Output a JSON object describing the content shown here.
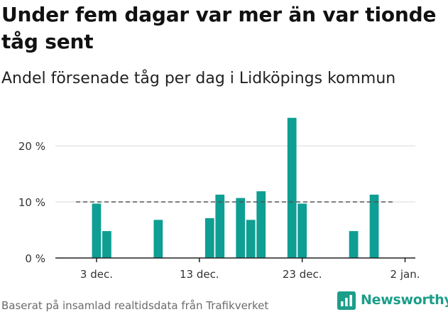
{
  "title": "Under fem dagar var mer än var tionde tåg sent",
  "subtitle": "Andel försenade tåg per dag i Lidköpings kommun",
  "source": "Baserat på insamlad realtidsdata från Trafikverket",
  "logo_text": "Newsworthy",
  "colors": {
    "bar": "#0f9e93",
    "axis": "#222222",
    "grid": "#d9d9d9",
    "reference": "#555555",
    "logo": "#1d9e8a"
  },
  "chart_data": {
    "type": "bar",
    "x_ticks": [
      {
        "label": "3 dec.",
        "date": "2023-12-03"
      },
      {
        "label": "13 dec.",
        "date": "2023-12-13"
      },
      {
        "label": "23 dec.",
        "date": "2023-12-23"
      },
      {
        "label": "2 jan.",
        "date": "2024-01-02"
      }
    ],
    "y_ticks": [
      {
        "label": "0 %",
        "value": 0
      },
      {
        "label": "10 %",
        "value": 10
      },
      {
        "label": "20 %",
        "value": 20
      }
    ],
    "ylim": [
      0,
      27
    ],
    "x_range": [
      "2023-11-29",
      "2024-01-03"
    ],
    "reference_line": {
      "value": 10,
      "from": "2023-12-01",
      "to": "2024-01-01"
    },
    "grid": true,
    "points": [
      {
        "date": "2023-12-03",
        "value": 9.7
      },
      {
        "date": "2023-12-04",
        "value": 4.8
      },
      {
        "date": "2023-12-09",
        "value": 6.8
      },
      {
        "date": "2023-12-14",
        "value": 7.1
      },
      {
        "date": "2023-12-15",
        "value": 11.3
      },
      {
        "date": "2023-12-17",
        "value": 10.7
      },
      {
        "date": "2023-12-18",
        "value": 6.8
      },
      {
        "date": "2023-12-19",
        "value": 11.9
      },
      {
        "date": "2023-12-22",
        "value": 25.0
      },
      {
        "date": "2023-12-23",
        "value": 9.7
      },
      {
        "date": "2023-12-28",
        "value": 4.8
      },
      {
        "date": "2023-12-30",
        "value": 11.3
      }
    ]
  }
}
